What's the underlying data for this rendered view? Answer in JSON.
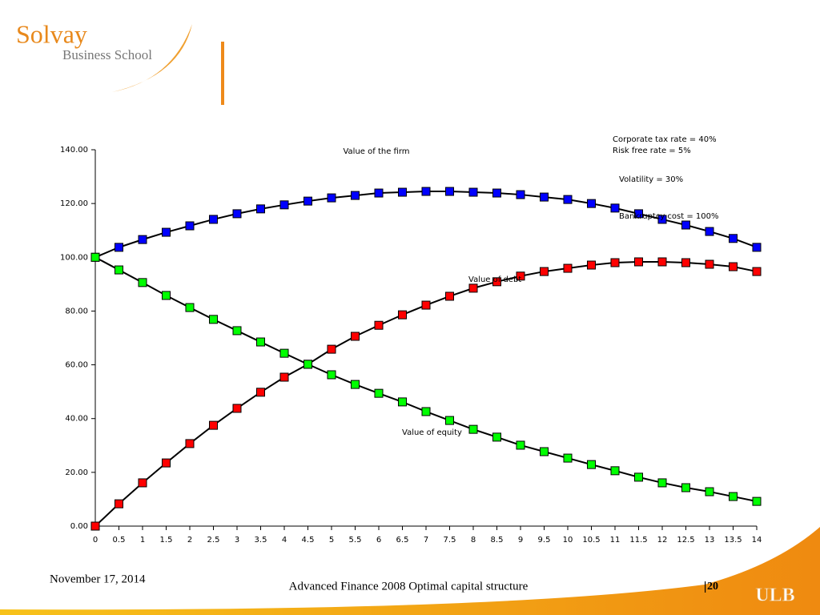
{
  "logo": {
    "name": "Solvay",
    "subtitle": "Business School"
  },
  "footer": {
    "date": "November 17, 2014",
    "text": "Advanced Finance 2008 Optimal capital structure",
    "page": "20",
    "brand": "ULB"
  },
  "chart_data": {
    "type": "line",
    "x": [
      0,
      0.5,
      1,
      1.5,
      2,
      2.5,
      3,
      3.5,
      4,
      4.5,
      5,
      5.5,
      6,
      6.5,
      7,
      7.5,
      8,
      8.5,
      9,
      9.5,
      10,
      10.5,
      11,
      11.5,
      12,
      12.5,
      13,
      13.5,
      14
    ],
    "xlim": [
      0,
      14
    ],
    "xticks": [
      0,
      0.5,
      1,
      1.5,
      2,
      2.5,
      3,
      3.5,
      4,
      4.5,
      5,
      5.5,
      6,
      6.5,
      7,
      7.5,
      8,
      8.5,
      9,
      9.5,
      10,
      10.5,
      11,
      11.5,
      12,
      12.5,
      13,
      13.5,
      14
    ],
    "ylim": [
      0,
      140
    ],
    "yticks": [
      {
        "value": 0,
        "label": "0.00"
      },
      {
        "value": 20,
        "label": "20.00"
      },
      {
        "value": 40,
        "label": "40.00"
      },
      {
        "value": 60,
        "label": "60.00"
      },
      {
        "value": 80,
        "label": "80.00"
      },
      {
        "value": 100,
        "label": "100.00"
      },
      {
        "value": 120,
        "label": "120.00"
      },
      {
        "value": 140,
        "label": "140.00"
      }
    ],
    "annotations": [
      "Value of the firm",
      "Corporate tax rate = 40%",
      "Risk free rate = 5%",
      "Volatility = 30%",
      "Bankruptcy cost = 100%",
      "Value of debt",
      "Value of equity"
    ],
    "series": [
      {
        "name": "Value of the firm",
        "color": "#0000ff",
        "values": [
          100,
          103.7,
          106.6,
          109.3,
          111.7,
          114.1,
          116.2,
          118.0,
          119.5,
          120.9,
          122.1,
          123.0,
          123.9,
          124.2,
          124.5,
          124.5,
          124.2,
          123.9,
          123.3,
          122.4,
          121.5,
          120.0,
          118.3,
          116.2,
          114.1,
          112.0,
          109.6,
          107.0,
          103.7
        ]
      },
      {
        "name": "Value of debt",
        "color": "#ff0000",
        "values": [
          0,
          8.3,
          16.1,
          23.5,
          30.7,
          37.5,
          43.8,
          49.8,
          55.4,
          60.2,
          65.8,
          70.6,
          74.7,
          78.6,
          82.2,
          85.5,
          88.5,
          90.9,
          93.0,
          94.7,
          95.9,
          97.1,
          98.0,
          98.3,
          98.3,
          98.0,
          97.4,
          96.5,
          94.7
        ]
      },
      {
        "name": "Value of equity",
        "color": "#00ff00",
        "values": [
          100,
          95.3,
          90.6,
          85.8,
          81.3,
          76.9,
          72.7,
          68.5,
          64.3,
          60.2,
          56.3,
          52.7,
          49.4,
          46.2,
          42.6,
          39.3,
          36.0,
          33.1,
          30.1,
          27.7,
          25.3,
          22.9,
          20.6,
          18.2,
          16.1,
          14.3,
          12.8,
          11.0,
          9.2
        ]
      }
    ]
  }
}
